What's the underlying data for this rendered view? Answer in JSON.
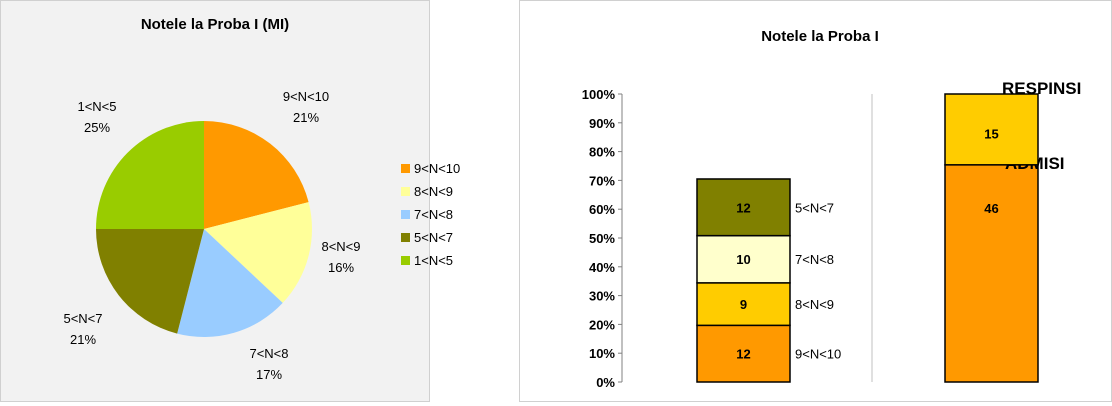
{
  "chart_data": [
    {
      "type": "pie",
      "title": "Notele la Proba I (MI)",
      "slices": [
        {
          "label": "9<N<10",
          "value": 21,
          "pct_label": "21%",
          "color": "#ff9900"
        },
        {
          "label": "8<N<9",
          "value": 16,
          "pct_label": "16%",
          "color": "#ffff99"
        },
        {
          "label": "7<N<8",
          "value": 17,
          "pct_label": "17%",
          "color": "#99ccff"
        },
        {
          "label": "5<N<7",
          "value": 21,
          "pct_label": "21%",
          "color": "#808000"
        },
        {
          "label": "1<N<5",
          "value": 25,
          "pct_label": "25%",
          "color": "#99cc00"
        }
      ],
      "legend": [
        "9<N<10",
        "8<N<9",
        "7<N<8",
        "5<N<7",
        "1<N<5"
      ],
      "legend_position": "right"
    },
    {
      "type": "bar",
      "stacked": true,
      "title": "Notele la Proba I",
      "y_ticks": [
        "0%",
        "10%",
        "20%",
        "30%",
        "40%",
        "50%",
        "60%",
        "70%",
        "80%",
        "90%",
        "100%"
      ],
      "ylim": [
        0,
        100
      ],
      "series_scale_total": 61,
      "bars": [
        {
          "segments": [
            {
              "label": "9<N<10",
              "value": 12,
              "color": "#ff9900"
            },
            {
              "label": "8<N<9",
              "value": 9,
              "color": "#ffcc00"
            },
            {
              "label": "7<N<8",
              "value": 10,
              "color": "#ffffcc"
            },
            {
              "label": "5<N<7",
              "value": 12,
              "color": "#808000"
            }
          ]
        },
        {
          "segments": [
            {
              "label": "ADMISI",
              "value": 46,
              "color": "#ff9900"
            },
            {
              "label": "RESPINSI",
              "value": 15,
              "color": "#ffcc00"
            }
          ]
        }
      ]
    }
  ]
}
